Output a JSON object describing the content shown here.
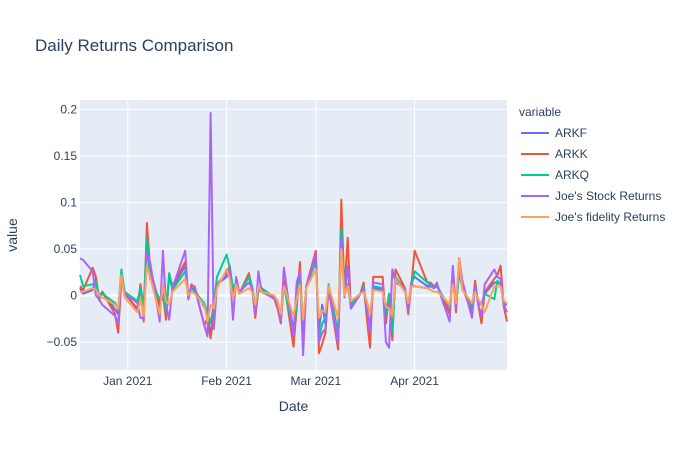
{
  "chart_data": {
    "type": "line",
    "title": "Daily Returns Comparison",
    "xlabel": "Date",
    "ylabel": "value",
    "legend_title": "variable",
    "legend_position": "right",
    "grid": true,
    "xlim": [
      "2020-12-17",
      "2021-04-30"
    ],
    "ylim": [
      -0.08,
      0.21
    ],
    "y_ticks": [
      {
        "value": -0.05,
        "label": "−0.05"
      },
      {
        "value": 0,
        "label": "0"
      },
      {
        "value": 0.05,
        "label": "0.05"
      },
      {
        "value": 0.1,
        "label": "0.1"
      },
      {
        "value": 0.15,
        "label": "0.15"
      },
      {
        "value": 0.2,
        "label": "0.2"
      }
    ],
    "x_ticks": [
      {
        "value": "2021-01-01",
        "label": "Jan 2021"
      },
      {
        "value": "2021-02-01",
        "label": "Feb 2021"
      },
      {
        "value": "2021-03-01",
        "label": "Mar 2021"
      },
      {
        "value": "2021-04-01",
        "label": "Apr 2021"
      }
    ],
    "x": [
      "2020-12-17",
      "2020-12-18",
      "2020-12-21",
      "2020-12-22",
      "2020-12-23",
      "2020-12-24",
      "2020-12-28",
      "2020-12-29",
      "2020-12-30",
      "2020-12-31",
      "2021-01-04",
      "2021-01-05",
      "2021-01-06",
      "2021-01-07",
      "2021-01-08",
      "2021-01-11",
      "2021-01-12",
      "2021-01-13",
      "2021-01-14",
      "2021-01-15",
      "2021-01-19",
      "2021-01-20",
      "2021-01-21",
      "2021-01-22",
      "2021-01-25",
      "2021-01-26",
      "2021-01-27",
      "2021-01-28",
      "2021-01-29",
      "2021-02-01",
      "2021-02-02",
      "2021-02-03",
      "2021-02-04",
      "2021-02-05",
      "2021-02-08",
      "2021-02-09",
      "2021-02-10",
      "2021-02-11",
      "2021-02-12",
      "2021-02-16",
      "2021-02-17",
      "2021-02-18",
      "2021-02-19",
      "2021-02-22",
      "2021-02-23",
      "2021-02-24",
      "2021-02-25",
      "2021-02-26",
      "2021-03-01",
      "2021-03-02",
      "2021-03-03",
      "2021-03-04",
      "2021-03-05",
      "2021-03-08",
      "2021-03-09",
      "2021-03-10",
      "2021-03-11",
      "2021-03-12",
      "2021-03-15",
      "2021-03-16",
      "2021-03-17",
      "2021-03-18",
      "2021-03-19",
      "2021-03-22",
      "2021-03-23",
      "2021-03-24",
      "2021-03-25",
      "2021-03-26",
      "2021-03-29",
      "2021-03-30",
      "2021-03-31",
      "2021-04-01",
      "2021-04-05",
      "2021-04-06",
      "2021-04-07",
      "2021-04-08",
      "2021-04-09",
      "2021-04-12",
      "2021-04-13",
      "2021-04-14",
      "2021-04-15",
      "2021-04-16",
      "2021-04-19",
      "2021-04-20",
      "2021-04-21",
      "2021-04-22",
      "2021-04-23",
      "2021-04-26",
      "2021-04-27",
      "2021-04-28",
      "2021-04-29",
      "2021-04-30"
    ],
    "series": [
      {
        "name": "ARKF",
        "color": "#636efa",
        "values": [
          0.008,
          0.002,
          0.006,
          0.018,
          -0.002,
          0.004,
          -0.015,
          -0.02,
          0.018,
          0.002,
          -0.014,
          0.012,
          -0.02,
          0.052,
          0.026,
          -0.008,
          0.002,
          -0.022,
          0.02,
          0.008,
          0.032,
          -0.002,
          0.01,
          0.006,
          -0.012,
          -0.018,
          -0.042,
          -0.022,
          0.012,
          0.02,
          0.03,
          0.004,
          0.012,
          0.002,
          0.02,
          0.006,
          -0.02,
          0.006,
          0.004,
          -0.003,
          -0.012,
          -0.026,
          0.014,
          -0.035,
          -0.01,
          0.03,
          -0.042,
          0.01,
          0.04,
          -0.036,
          -0.01,
          -0.03,
          0.01,
          -0.052,
          0.062,
          0.004,
          0.01,
          -0.01,
          0.002,
          0.01,
          -0.02,
          -0.032,
          0.008,
          0.006,
          -0.024,
          0.002,
          -0.038,
          0.02,
          0.006,
          -0.01,
          0.014,
          0.02,
          0.01,
          0.012,
          0.008,
          0.01,
          0.004,
          -0.018,
          0.022,
          -0.014,
          0.03,
          0.008,
          -0.016,
          0.012,
          -0.008,
          -0.01,
          0.002,
          0.014,
          0.014,
          0.012,
          -0.01,
          -0.01
        ]
      },
      {
        "name": "ARKK",
        "color": "#ef553b",
        "values": [
          0.01,
          0.006,
          0.03,
          0.02,
          -0.005,
          0.004,
          -0.02,
          -0.04,
          0.016,
          0.004,
          -0.016,
          0.012,
          -0.028,
          0.078,
          0.03,
          -0.012,
          0.002,
          -0.026,
          0.024,
          0.01,
          0.036,
          -0.004,
          0.012,
          0.008,
          -0.032,
          -0.024,
          -0.046,
          -0.02,
          0.012,
          0.024,
          0.032,
          0.002,
          0.014,
          0.002,
          0.024,
          0.008,
          -0.024,
          0.008,
          0.006,
          -0.004,
          -0.014,
          -0.03,
          0.016,
          -0.055,
          -0.014,
          0.036,
          -0.05,
          0.01,
          0.048,
          -0.062,
          -0.052,
          -0.04,
          0.008,
          -0.058,
          0.103,
          0.004,
          0.062,
          -0.014,
          0.002,
          0.014,
          -0.024,
          -0.056,
          0.02,
          0.02,
          -0.03,
          0.002,
          -0.048,
          0.028,
          0.008,
          -0.02,
          0.012,
          0.048,
          0.014,
          0.014,
          0.01,
          0.012,
          0.004,
          -0.02,
          0.024,
          -0.018,
          0.04,
          0.01,
          -0.02,
          0.016,
          -0.01,
          -0.03,
          0.004,
          0.018,
          0.022,
          0.032,
          -0.012,
          -0.028
        ]
      },
      {
        "name": "ARKQ",
        "color": "#00cc96",
        "values": [
          0.022,
          0.01,
          0.012,
          0.015,
          -0.003,
          0.002,
          -0.008,
          -0.016,
          0.028,
          0.004,
          -0.006,
          0.008,
          -0.01,
          0.062,
          0.018,
          -0.004,
          0.004,
          -0.018,
          0.024,
          0.006,
          0.026,
          0.002,
          0.008,
          0.004,
          -0.008,
          -0.018,
          -0.03,
          -0.01,
          0.02,
          0.044,
          0.03,
          0.008,
          0.014,
          0.002,
          0.02,
          0.01,
          -0.012,
          0.006,
          0.008,
          -0.002,
          -0.008,
          -0.022,
          0.01,
          -0.04,
          -0.01,
          0.024,
          -0.034,
          0.01,
          0.036,
          -0.046,
          -0.03,
          -0.024,
          0.012,
          -0.04,
          0.072,
          0.004,
          0.012,
          -0.01,
          0.002,
          0.01,
          -0.014,
          -0.036,
          0.01,
          0.008,
          -0.02,
          0.002,
          -0.04,
          0.02,
          0.004,
          -0.012,
          0.01,
          0.026,
          0.014,
          0.012,
          0.008,
          0.01,
          0.004,
          -0.012,
          0.018,
          -0.01,
          0.024,
          0.008,
          -0.012,
          0.01,
          -0.006,
          -0.01,
          0.002,
          -0.004,
          0.016,
          0.012,
          -0.008,
          -0.008
        ]
      },
      {
        "name": "Joe's  Stock Returns",
        "color": "#ab63fa",
        "values": [
          0.04,
          0.038,
          0.026,
          0.0,
          -0.004,
          -0.01,
          -0.022,
          -0.03,
          0.02,
          0.002,
          -0.008,
          -0.024,
          -0.024,
          0.046,
          0.036,
          -0.028,
          0.048,
          -0.01,
          -0.026,
          0.008,
          0.048,
          -0.004,
          0.008,
          0.01,
          -0.032,
          -0.044,
          0.196,
          -0.036,
          0.01,
          0.024,
          0.028,
          -0.026,
          0.02,
          0.004,
          0.014,
          0.008,
          -0.02,
          0.026,
          0.004,
          -0.003,
          -0.01,
          -0.028,
          0.03,
          -0.044,
          0.014,
          0.026,
          -0.064,
          0.008,
          0.044,
          -0.05,
          -0.04,
          -0.036,
          0.01,
          -0.052,
          0.062,
          -0.002,
          0.032,
          -0.014,
          0.002,
          0.008,
          -0.01,
          -0.04,
          0.014,
          0.012,
          -0.05,
          -0.056,
          0.028,
          0.014,
          0.008,
          -0.016,
          0.012,
          0.01,
          0.008,
          0.01,
          0.008,
          0.014,
          0.002,
          -0.028,
          0.032,
          -0.014,
          0.04,
          0.016,
          -0.024,
          0.01,
          -0.01,
          -0.022,
          0.012,
          0.028,
          0.02,
          0.018,
          -0.01,
          -0.018
        ]
      },
      {
        "name": "Joe's fidelity Returns",
        "color": "#ffa15a",
        "values": [
          0.004,
          0.004,
          0.008,
          0.006,
          0.0,
          -0.002,
          -0.01,
          -0.014,
          0.022,
          -0.002,
          -0.018,
          -0.004,
          -0.022,
          0.032,
          0.02,
          -0.02,
          0.012,
          -0.006,
          -0.01,
          0.004,
          0.018,
          0.0,
          0.004,
          0.002,
          -0.01,
          -0.028,
          -0.01,
          -0.014,
          0.008,
          0.028,
          0.018,
          -0.004,
          0.012,
          0.002,
          0.008,
          0.004,
          -0.01,
          0.01,
          0.004,
          0.0,
          -0.006,
          -0.02,
          0.01,
          -0.022,
          -0.004,
          0.012,
          -0.026,
          0.008,
          0.028,
          -0.024,
          -0.016,
          -0.018,
          0.01,
          -0.024,
          0.05,
          0.0,
          0.01,
          -0.006,
          0.002,
          0.004,
          -0.006,
          -0.02,
          0.006,
          0.004,
          -0.012,
          -0.014,
          -0.022,
          0.018,
          0.004,
          -0.008,
          0.01,
          0.01,
          0.008,
          0.006,
          0.004,
          0.004,
          0.002,
          -0.01,
          0.012,
          -0.008,
          0.04,
          0.006,
          -0.008,
          0.004,
          -0.004,
          -0.01,
          -0.018,
          0.01,
          0.01,
          0.01,
          -0.006,
          -0.008
        ]
      }
    ]
  }
}
